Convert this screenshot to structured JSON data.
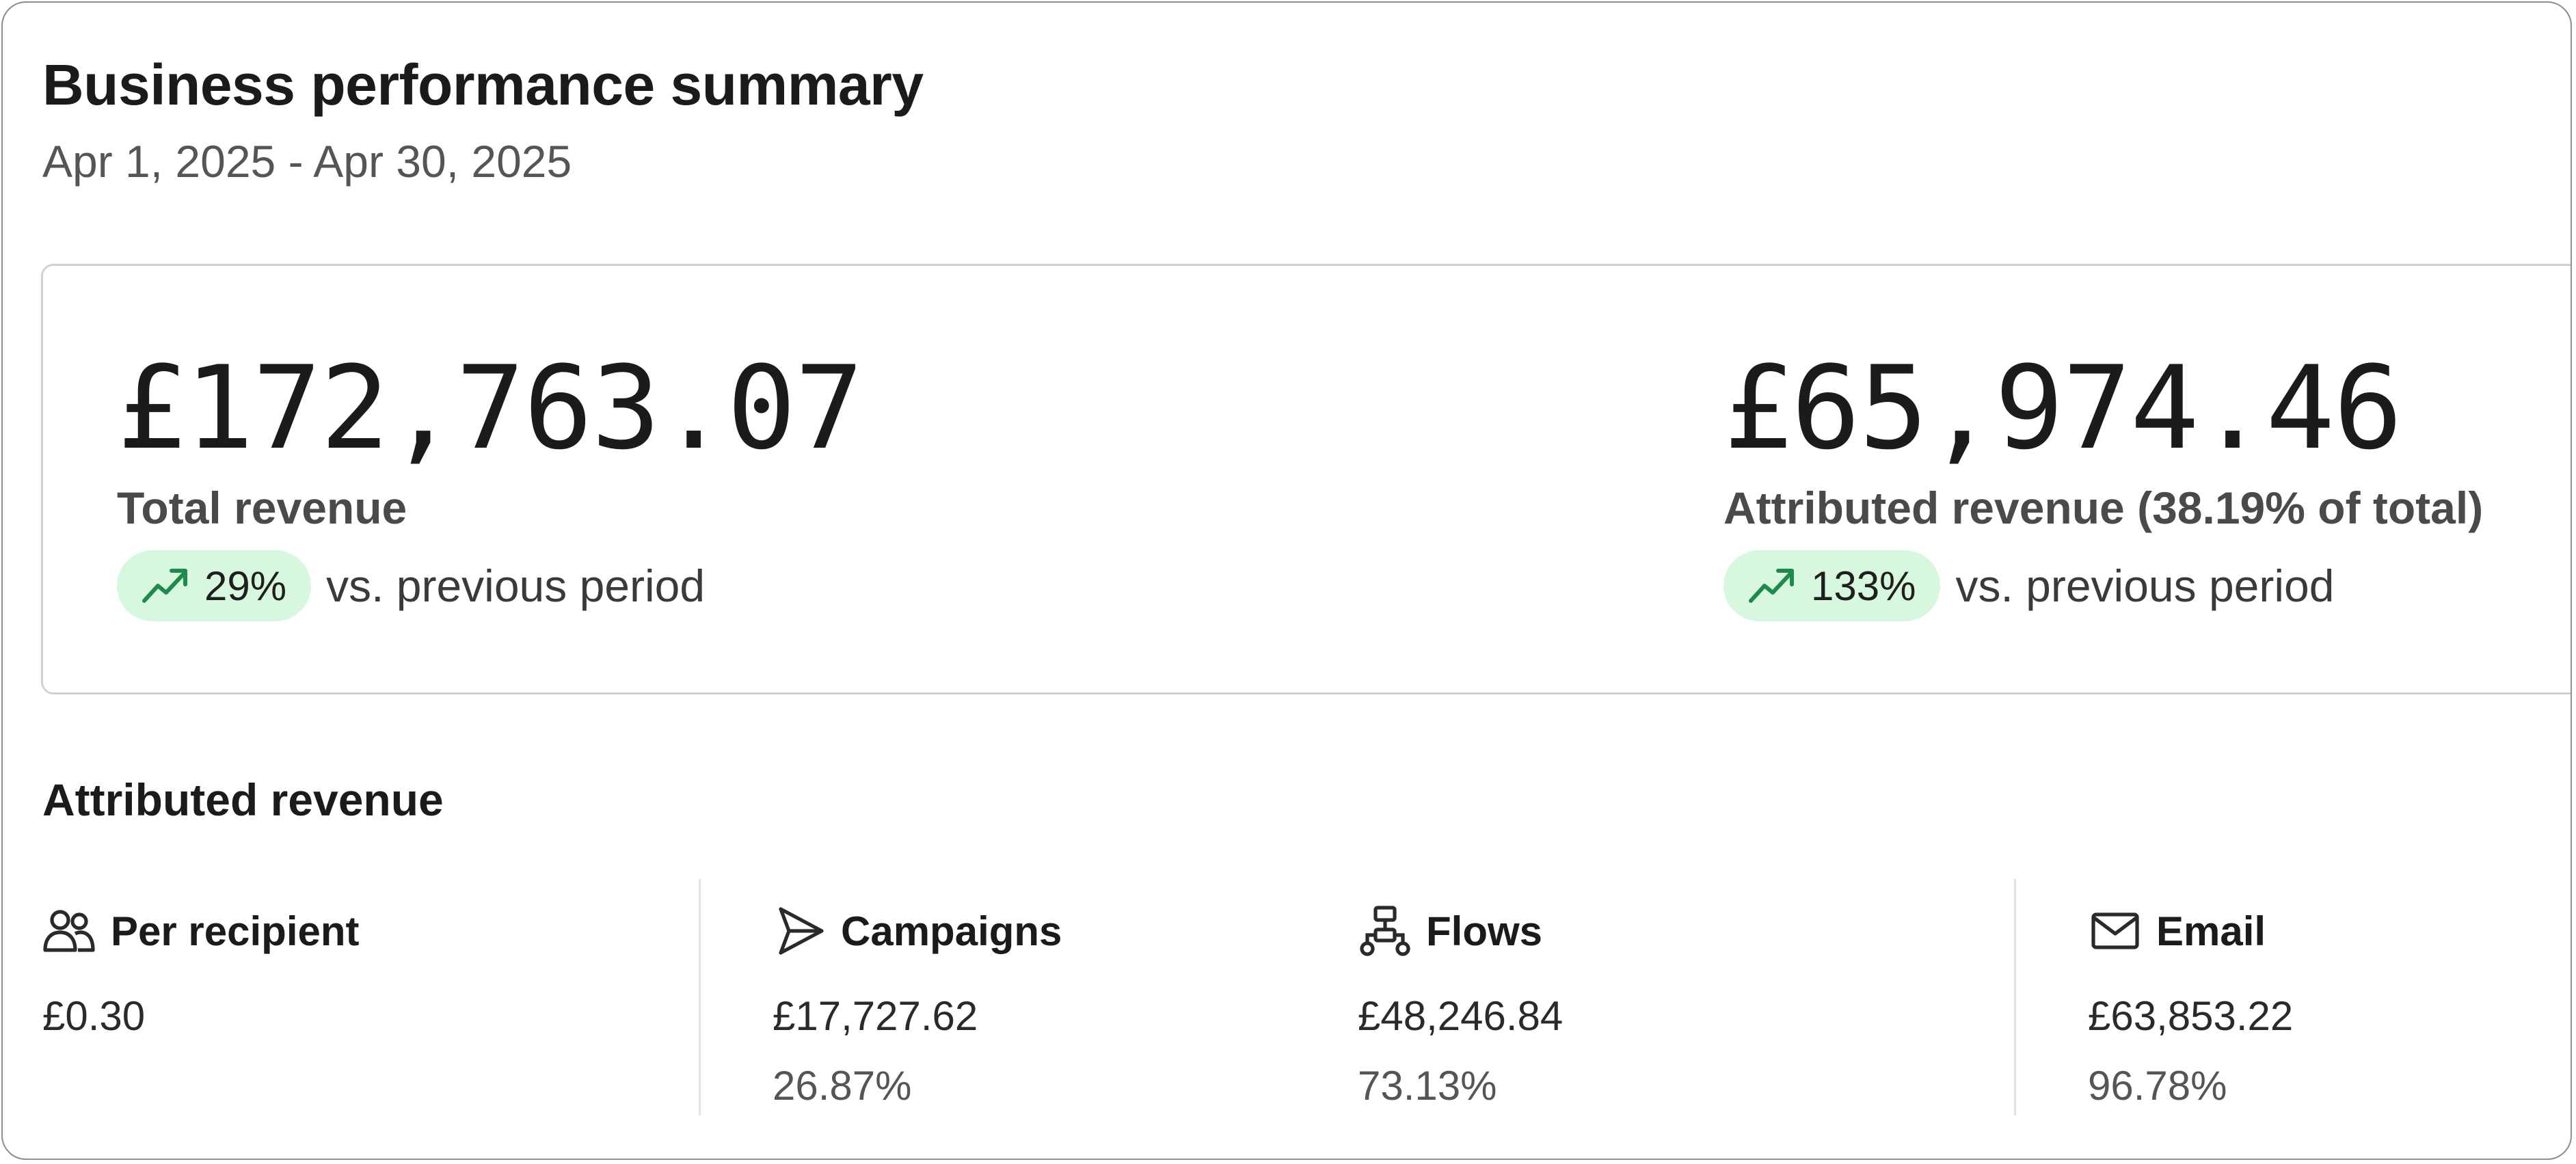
{
  "header": {
    "title": "Business performance summary",
    "date_range": "Apr 1, 2025 - Apr 30, 2025"
  },
  "summary": {
    "total": {
      "value": "£172,763.07",
      "label": "Total revenue",
      "change": "29%",
      "change_suffix": "vs. previous period",
      "trend_icon": "trend-up-icon"
    },
    "attributed": {
      "value": "£65,974.46",
      "label": "Attributed revenue (38.19% of total)",
      "change": "133%",
      "change_suffix": "vs. previous period",
      "trend_icon": "trend-up-icon"
    }
  },
  "attributed_revenue": {
    "title": "Attributed revenue",
    "channels": [
      {
        "name": "Per recipient",
        "icon": "users-icon",
        "value": "£0.30"
      },
      {
        "name": "Campaigns",
        "icon": "send-icon",
        "value": "£17,727.62",
        "pct": "26.87%"
      },
      {
        "name": "Flows",
        "icon": "flow-icon",
        "value": "£48,246.84",
        "pct": "73.13%"
      },
      {
        "name": "Email",
        "icon": "mail-icon",
        "value": "£63,853.22",
        "pct": "96.78%"
      }
    ]
  },
  "colors": {
    "badge_bg": "#d7f7df",
    "trend_green": "#1e8a4c",
    "border": "#d2d2d2"
  }
}
